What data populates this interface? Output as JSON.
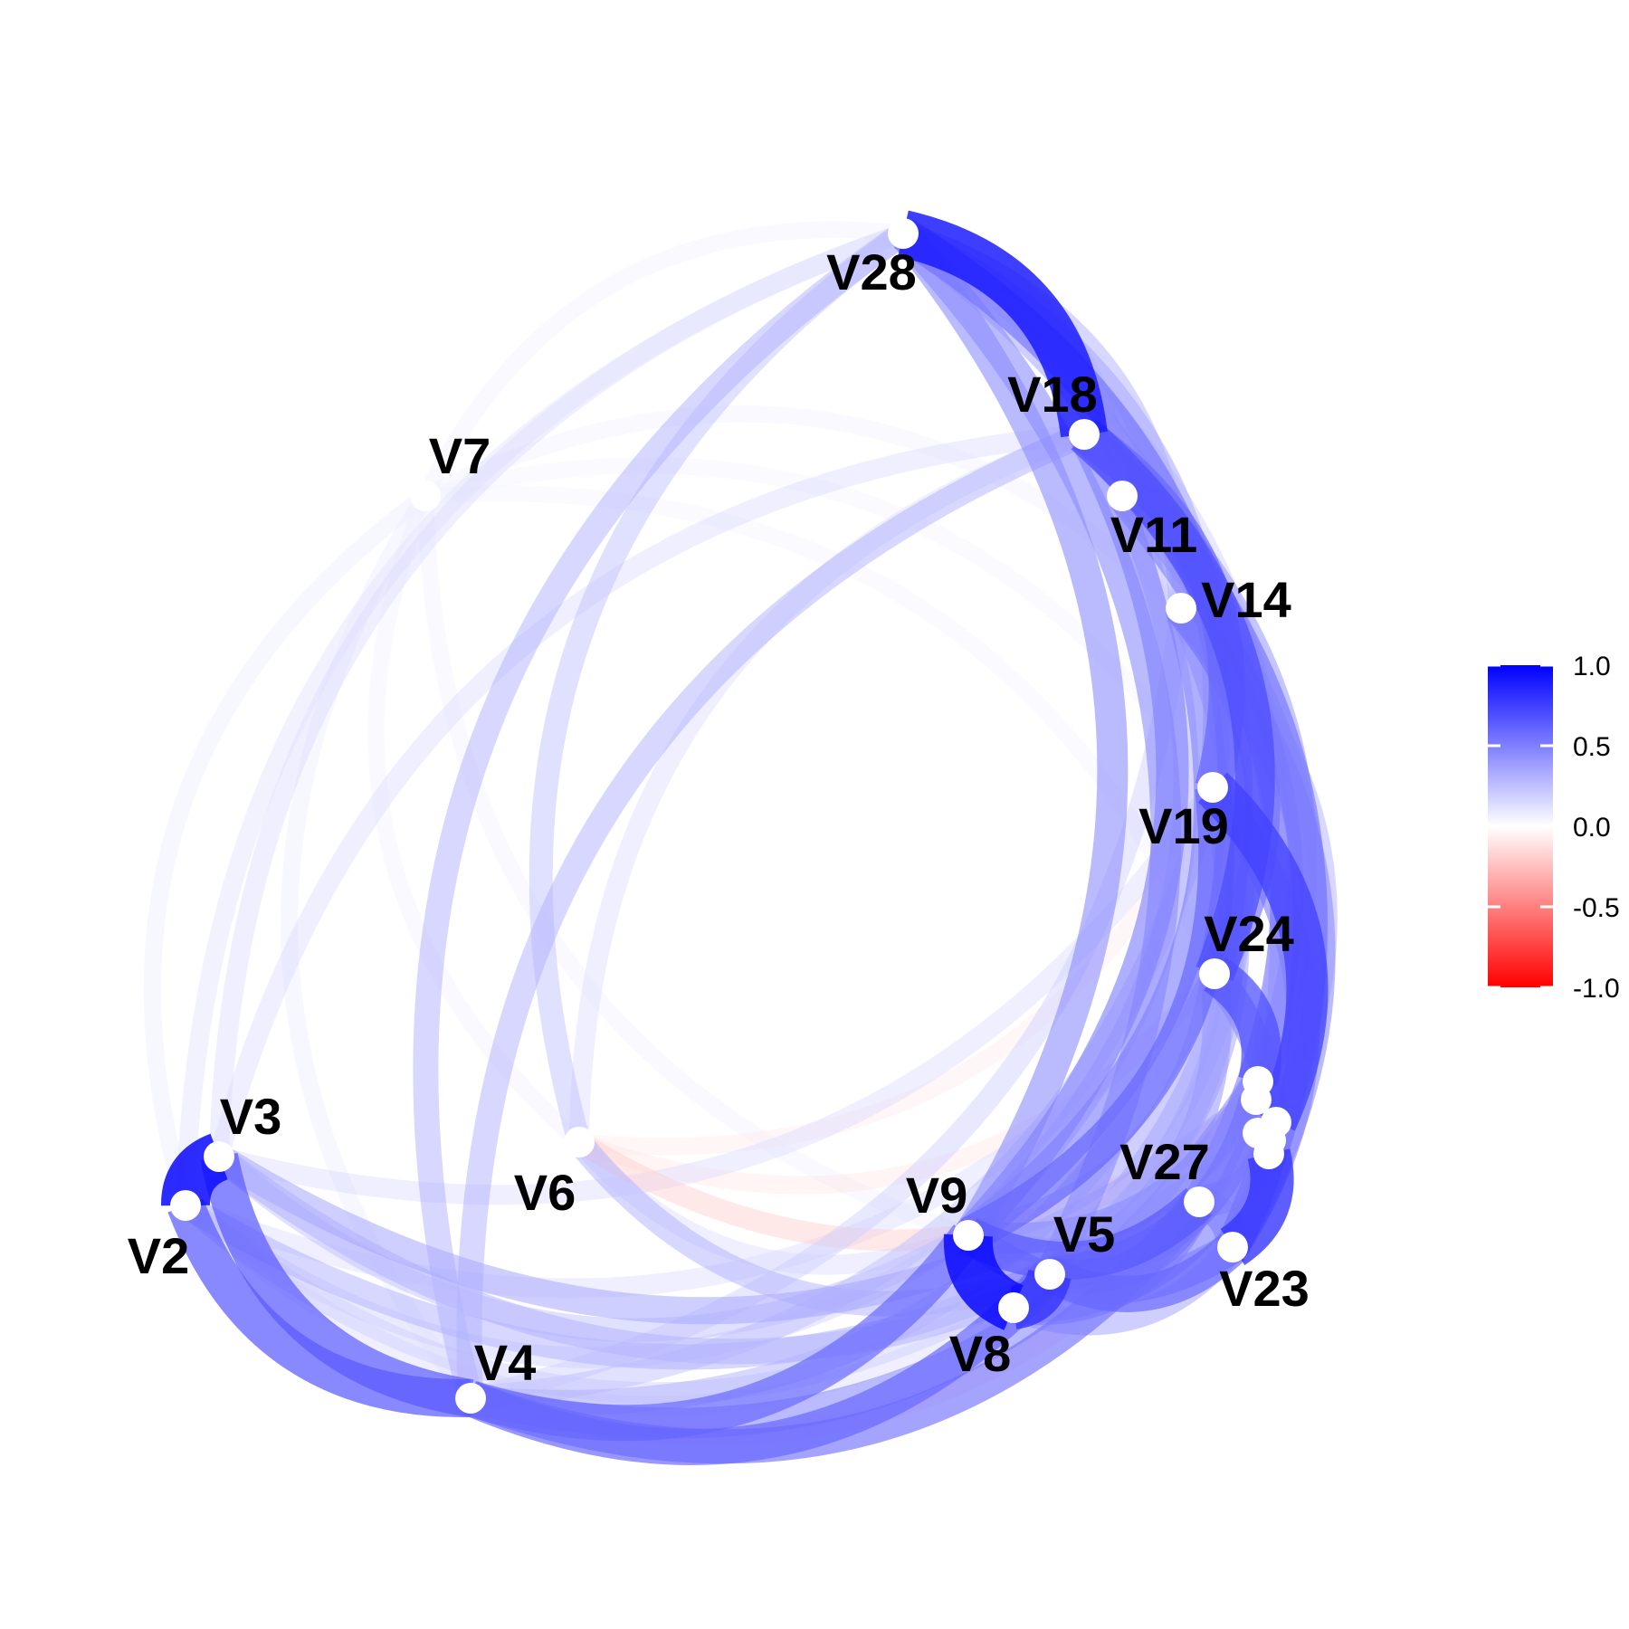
{
  "diagram": {
    "type": "correlation-network",
    "color_scale": {
      "negative": "#ff0000",
      "zero": "#ffffff",
      "positive": "#0000ff"
    },
    "nodes": [
      {
        "id": "V2",
        "label": "V2"
      },
      {
        "id": "V3",
        "label": "V3"
      },
      {
        "id": "V4",
        "label": "V4"
      },
      {
        "id": "V5",
        "label": "V5"
      },
      {
        "id": "V6",
        "label": "V6"
      },
      {
        "id": "V7",
        "label": "V7"
      },
      {
        "id": "V8",
        "label": "V8"
      },
      {
        "id": "V9",
        "label": "V9"
      },
      {
        "id": "V11",
        "label": "V11"
      },
      {
        "id": "V14",
        "label": "V14"
      },
      {
        "id": "V18",
        "label": "V18"
      },
      {
        "id": "V19",
        "label": "V19"
      },
      {
        "id": "V23",
        "label": "V23"
      },
      {
        "id": "V24",
        "label": "V24"
      },
      {
        "id": "V27",
        "label": "V27"
      },
      {
        "id": "V28",
        "label": "V28"
      },
      {
        "id": "C1",
        "label": ""
      },
      {
        "id": "C2",
        "label": ""
      },
      {
        "id": "C3",
        "label": ""
      },
      {
        "id": "C4",
        "label": ""
      },
      {
        "id": "C5",
        "label": ""
      },
      {
        "id": "C6",
        "label": ""
      }
    ],
    "edges": [
      {
        "source": "V2",
        "target": "V3",
        "value": 0.95
      },
      {
        "source": "V8",
        "target": "V9",
        "value": 0.95
      },
      {
        "source": "V28",
        "target": "V18",
        "value": 0.9
      },
      {
        "source": "V8",
        "target": "V5",
        "value": 0.8
      },
      {
        "source": "V23",
        "target": "C6",
        "value": 0.8
      },
      {
        "source": "V19",
        "target": "C3",
        "value": 0.75
      },
      {
        "source": "V24",
        "target": "C1",
        "value": 0.7
      },
      {
        "source": "V18",
        "target": "V24",
        "value": 0.7
      },
      {
        "source": "V2",
        "target": "V4",
        "value": 0.65
      },
      {
        "source": "V3",
        "target": "V4",
        "value": 0.65
      },
      {
        "source": "V4",
        "target": "V9",
        "value": 0.6
      },
      {
        "source": "V4",
        "target": "V5",
        "value": 0.6
      },
      {
        "source": "V4",
        "target": "V27",
        "value": 0.55
      },
      {
        "source": "V9",
        "target": "V27",
        "value": 0.65
      },
      {
        "source": "V5",
        "target": "V23",
        "value": 0.6
      },
      {
        "source": "V9",
        "target": "V19",
        "value": 0.6
      },
      {
        "source": "V18",
        "target": "V19",
        "value": 0.6
      },
      {
        "source": "V14",
        "target": "V24",
        "value": 0.55
      },
      {
        "source": "V18",
        "target": "V23",
        "value": 0.55
      },
      {
        "source": "V28",
        "target": "V24",
        "value": 0.55
      },
      {
        "source": "V11",
        "target": "V27",
        "value": 0.5
      },
      {
        "source": "V14",
        "target": "V9",
        "value": 0.5
      },
      {
        "source": "V18",
        "target": "V9",
        "value": 0.5
      },
      {
        "source": "V28",
        "target": "V9",
        "value": 0.45
      },
      {
        "source": "V28",
        "target": "V5",
        "value": 0.45
      },
      {
        "source": "V5",
        "target": "C2",
        "value": 0.55
      },
      {
        "source": "V8",
        "target": "C4",
        "value": 0.5
      },
      {
        "source": "V9",
        "target": "C1",
        "value": 0.45
      },
      {
        "source": "V27",
        "target": "C5",
        "value": 0.5
      },
      {
        "source": "V4",
        "target": "C1",
        "value": 0.45
      },
      {
        "source": "V3",
        "target": "C2",
        "value": 0.35
      },
      {
        "source": "V2",
        "target": "C3",
        "value": 0.3
      },
      {
        "source": "V3",
        "target": "V27",
        "value": 0.3
      },
      {
        "source": "V4",
        "target": "V28",
        "value": 0.3
      },
      {
        "source": "V4",
        "target": "V18",
        "value": 0.3
      },
      {
        "source": "V6",
        "target": "V5",
        "value": 0.3
      },
      {
        "source": "V6",
        "target": "C2",
        "value": -0.2
      },
      {
        "source": "V6",
        "target": "V24",
        "value": -0.1
      },
      {
        "source": "V4",
        "target": "C4",
        "value": -0.15
      },
      {
        "source": "V6",
        "target": "V28",
        "value": 0.25
      },
      {
        "source": "V28",
        "target": "V23",
        "value": 0.35
      },
      {
        "source": "V28",
        "target": "V14",
        "value": 0.3
      },
      {
        "source": "V28",
        "target": "V19",
        "value": 0.35
      },
      {
        "source": "V11",
        "target": "V9",
        "value": 0.3
      },
      {
        "source": "V11",
        "target": "V23",
        "value": 0.35
      },
      {
        "source": "V14",
        "target": "V23",
        "value": 0.45
      },
      {
        "source": "V14",
        "target": "V5",
        "value": 0.35
      },
      {
        "source": "V19",
        "target": "V5",
        "value": 0.35
      },
      {
        "source": "V24",
        "target": "V9",
        "value": 0.35
      },
      {
        "source": "V8",
        "target": "V23",
        "value": 0.35
      },
      {
        "source": "V9",
        "target": "C5",
        "value": 0.3
      },
      {
        "source": "V7",
        "target": "V28",
        "value": 0.06
      },
      {
        "source": "V7",
        "target": "V2",
        "value": 0.08
      },
      {
        "source": "V7",
        "target": "V4",
        "value": 0.08
      },
      {
        "source": "V7",
        "target": "V9",
        "value": 0.06
      },
      {
        "source": "V7",
        "target": "V14",
        "value": 0.06
      },
      {
        "source": "V7",
        "target": "V19",
        "value": 0.05
      },
      {
        "source": "V7",
        "target": "V6",
        "value": 0.06
      },
      {
        "source": "V2",
        "target": "V28",
        "value": 0.12
      },
      {
        "source": "V3",
        "target": "V28",
        "value": 0.15
      },
      {
        "source": "V2",
        "target": "V8",
        "value": 0.15
      },
      {
        "source": "V2",
        "target": "V9",
        "value": 0.18
      },
      {
        "source": "V3",
        "target": "V18",
        "value": 0.15
      },
      {
        "source": "V2",
        "target": "V24",
        "value": 0.15
      },
      {
        "source": "V3",
        "target": "V19",
        "value": 0.15
      },
      {
        "source": "V6",
        "target": "V18",
        "value": 0.15
      },
      {
        "source": "V4",
        "target": "V14",
        "value": 0.2
      },
      {
        "source": "V6",
        "target": "V19",
        "value": -0.08
      },
      {
        "source": "V6",
        "target": "V9",
        "value": 0.15
      },
      {
        "source": "V28",
        "target": "V11",
        "value": 0.2
      },
      {
        "source": "V28",
        "target": "C1",
        "value": 0.2
      },
      {
        "source": "V18",
        "target": "V14",
        "value": 0.25
      },
      {
        "source": "V11",
        "target": "V14",
        "value": 0.2
      },
      {
        "source": "V11",
        "target": "V19",
        "value": 0.2
      },
      {
        "source": "V7",
        "target": "V24",
        "value": 0.05
      },
      {
        "source": "V3",
        "target": "V9",
        "value": 0.25
      },
      {
        "source": "V2",
        "target": "V5",
        "value": 0.2
      },
      {
        "source": "V4",
        "target": "V19",
        "value": 0.25
      },
      {
        "source": "V4",
        "target": "V24",
        "value": 0.3
      },
      {
        "source": "V14",
        "target": "C3",
        "value": 0.3
      },
      {
        "source": "V18",
        "target": "C2",
        "value": 0.4
      },
      {
        "source": "V19",
        "target": "V23",
        "value": 0.5
      },
      {
        "source": "V24",
        "target": "V23",
        "value": 0.45
      },
      {
        "source": "V27",
        "target": "V23",
        "value": 0.5
      },
      {
        "source": "V5",
        "target": "V27",
        "value": 0.55
      },
      {
        "source": "V9",
        "target": "V23",
        "value": 0.5
      },
      {
        "source": "V8",
        "target": "V27",
        "value": 0.5
      },
      {
        "source": "V8",
        "target": "V19",
        "value": 0.35
      },
      {
        "source": "V5",
        "target": "V24",
        "value": 0.4
      },
      {
        "source": "C6",
        "target": "C3",
        "value": -0.4
      }
    ]
  },
  "legend": {
    "ticks": [
      {
        "value": 1.0,
        "label": "1.0"
      },
      {
        "value": 0.5,
        "label": "0.5"
      },
      {
        "value": 0.0,
        "label": "0.0"
      },
      {
        "value": -0.5,
        "label": "-0.5"
      },
      {
        "value": -1.0,
        "label": "-1.0"
      }
    ]
  }
}
